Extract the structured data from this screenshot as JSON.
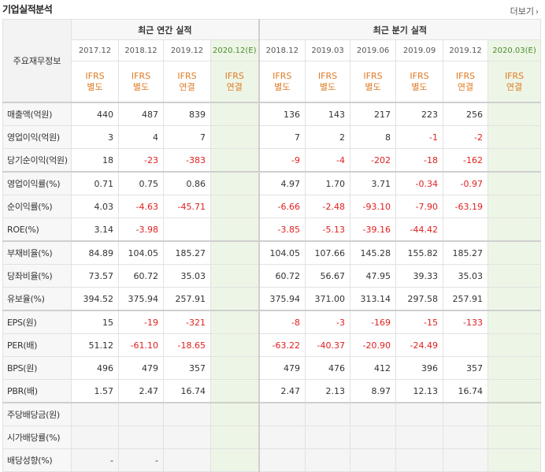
{
  "header": {
    "title": "기업실적분석",
    "more_label": "더보기"
  },
  "table": {
    "row_header_label": "주요재무정보",
    "annual_group_label": "최근 연간 실적",
    "quarter_group_label": "최근 분기 실적",
    "annual_periods": [
      "2017.12",
      "2018.12",
      "2019.12",
      "2020.12(E)"
    ],
    "quarter_periods": [
      "2018.12",
      "2019.03",
      "2019.06",
      "2019.09",
      "2019.12",
      "2020.03(E)"
    ],
    "annual_types": [
      [
        "IFRS",
        "별도"
      ],
      [
        "IFRS",
        "별도"
      ],
      [
        "IFRS",
        "연결"
      ],
      [
        "IFRS",
        "연결"
      ]
    ],
    "quarter_types": [
      [
        "IFRS",
        "별도"
      ],
      [
        "IFRS",
        "별도"
      ],
      [
        "IFRS",
        "별도"
      ],
      [
        "IFRS",
        "별도"
      ],
      [
        "IFRS",
        "연결"
      ],
      [
        "IFRS",
        "연결"
      ]
    ],
    "rows": [
      {
        "label": "매출액(억원)",
        "annual": [
          "440",
          "487",
          "839",
          ""
        ],
        "quarter": [
          "136",
          "143",
          "217",
          "223",
          "256",
          ""
        ]
      },
      {
        "label": "영업이익(억원)",
        "annual": [
          "3",
          "4",
          "7",
          ""
        ],
        "quarter": [
          "7",
          "2",
          "8",
          "-1",
          "-2",
          ""
        ]
      },
      {
        "label": "당기순이익(억원)",
        "annual": [
          "18",
          "-23",
          "-383",
          ""
        ],
        "quarter": [
          "-9",
          "-4",
          "-202",
          "-18",
          "-162",
          ""
        ]
      },
      {
        "label": "영업이익률(%)",
        "annual": [
          "0.71",
          "0.75",
          "0.86",
          ""
        ],
        "quarter": [
          "4.97",
          "1.70",
          "3.71",
          "-0.34",
          "-0.97",
          ""
        ]
      },
      {
        "label": "순이익률(%)",
        "annual": [
          "4.03",
          "-4.63",
          "-45.71",
          ""
        ],
        "quarter": [
          "-6.66",
          "-2.48",
          "-93.10",
          "-7.90",
          "-63.19",
          ""
        ]
      },
      {
        "label": "ROE(%)",
        "annual": [
          "3.14",
          "-3.98",
          "",
          ""
        ],
        "quarter": [
          "-3.85",
          "-5.13",
          "-39.16",
          "-44.42",
          "",
          ""
        ]
      },
      {
        "label": "부채비율(%)",
        "annual": [
          "84.89",
          "104.05",
          "185.27",
          ""
        ],
        "quarter": [
          "104.05",
          "107.66",
          "145.28",
          "155.82",
          "185.27",
          ""
        ]
      },
      {
        "label": "당좌비율(%)",
        "annual": [
          "73.57",
          "60.72",
          "35.03",
          ""
        ],
        "quarter": [
          "60.72",
          "56.67",
          "47.95",
          "39.33",
          "35.03",
          ""
        ]
      },
      {
        "label": "유보율(%)",
        "annual": [
          "394.52",
          "375.94",
          "257.91",
          ""
        ],
        "quarter": [
          "375.94",
          "371.00",
          "313.14",
          "297.58",
          "257.91",
          ""
        ]
      },
      {
        "label": "EPS(원)",
        "annual": [
          "15",
          "-19",
          "-321",
          ""
        ],
        "quarter": [
          "-8",
          "-3",
          "-169",
          "-15",
          "-133",
          ""
        ]
      },
      {
        "label": "PER(배)",
        "annual": [
          "51.12",
          "-61.10",
          "-18.65",
          ""
        ],
        "quarter": [
          "-63.22",
          "-40.37",
          "-20.90",
          "-24.49",
          "",
          ""
        ]
      },
      {
        "label": "BPS(원)",
        "annual": [
          "496",
          "479",
          "357",
          ""
        ],
        "quarter": [
          "479",
          "476",
          "412",
          "396",
          "357",
          ""
        ]
      },
      {
        "label": "PBR(배)",
        "annual": [
          "1.57",
          "2.47",
          "16.74",
          ""
        ],
        "quarter": [
          "2.47",
          "2.13",
          "8.97",
          "12.13",
          "16.74",
          ""
        ]
      },
      {
        "label": "주당배당금(원)",
        "annual": [
          "",
          "",
          "",
          ""
        ],
        "quarter": [
          "",
          "",
          "",
          "",
          "",
          ""
        ]
      },
      {
        "label": "시가배당률(%)",
        "annual": [
          "",
          "",
          "",
          ""
        ],
        "quarter": [
          "",
          "",
          "",
          "",
          "",
          ""
        ]
      },
      {
        "label": "배당성향(%)",
        "annual": [
          "-",
          "-",
          "",
          ""
        ],
        "quarter": [
          "",
          "",
          "",
          "",
          "",
          ""
        ]
      }
    ],
    "colors": {
      "negative": "#e0201f",
      "accounting_type": "#e07a24",
      "estimate_bg": "#edf6e6"
    }
  }
}
